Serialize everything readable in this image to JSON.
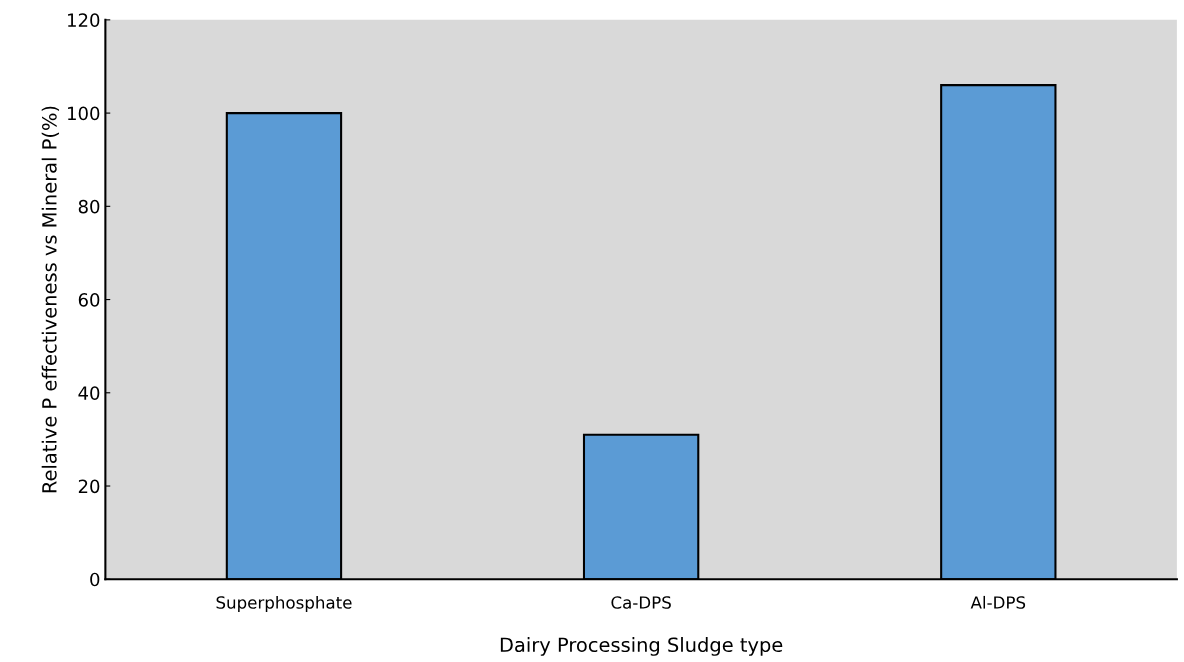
{
  "chart_data": {
    "type": "bar",
    "xlabel": "Dairy Processing Sludge type",
    "ylabel": "Relative P effectiveness vs Mineral P(%)",
    "categories": [
      "Superphosphate",
      "Ca-DPS",
      "Al-DPS"
    ],
    "values": [
      100,
      31,
      106
    ],
    "color": "#5b9bd5",
    "ylim": [
      0,
      120
    ],
    "yticks": [
      0,
      20,
      40,
      60,
      80,
      100,
      120
    ],
    "grid": false
  }
}
